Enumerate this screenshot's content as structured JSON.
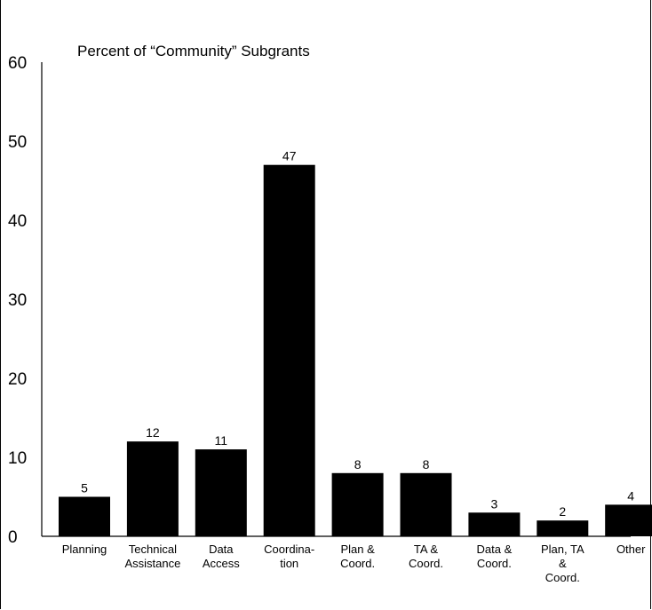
{
  "header": {
    "cut_text": "· · · · · · · · · · · · · · · · · · ·"
  },
  "chart_data": {
    "type": "bar",
    "title": "Percent of “Community” Subgrants",
    "xlabel": "",
    "ylabel": "",
    "ylim": [
      0,
      60
    ],
    "yticks": [
      0,
      10,
      20,
      30,
      40,
      50,
      60
    ],
    "grid": false,
    "bar_color": "#000000",
    "categories": [
      [
        "Planning"
      ],
      [
        "Technical",
        "Assistance"
      ],
      [
        "Data",
        "Access"
      ],
      [
        "Coordina-",
        "tion"
      ],
      [
        "Plan &",
        "Coord."
      ],
      [
        "TA &",
        "Coord."
      ],
      [
        "Data &",
        "Coord."
      ],
      [
        "Plan, TA",
        "&",
        "Coord."
      ],
      [
        "Other"
      ]
    ],
    "values": [
      5,
      12,
      11,
      47,
      8,
      8,
      3,
      2,
      4
    ]
  }
}
